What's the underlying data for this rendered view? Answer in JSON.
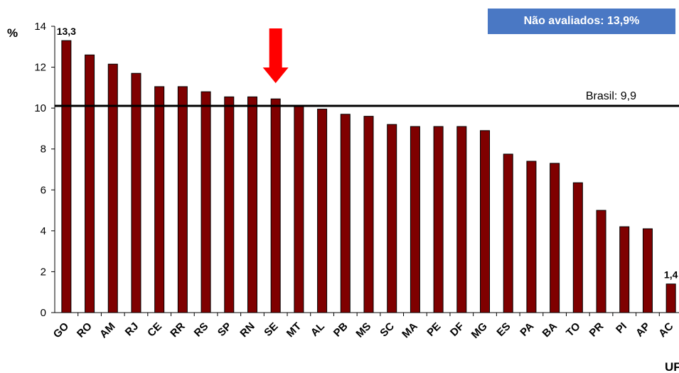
{
  "chart_data": {
    "type": "bar",
    "ylabel": "%",
    "xlabel": "UF",
    "ylim": [
      0,
      14
    ],
    "yticks": [
      0,
      2,
      4,
      6,
      8,
      10,
      12,
      14
    ],
    "grid": false,
    "bar_color": "#7f0000",
    "categories": [
      "GO",
      "RO",
      "AM",
      "RJ",
      "CE",
      "RR",
      "RS",
      "SP",
      "RN",
      "SE",
      "MT",
      "AL",
      "PB",
      "MS",
      "SC",
      "MA",
      "PE",
      "DF",
      "MG",
      "ES",
      "PA",
      "BA",
      "TO",
      "PR",
      "PI",
      "AP",
      "AC"
    ],
    "values": [
      13.3,
      12.6,
      12.15,
      11.7,
      11.05,
      11.05,
      10.8,
      10.55,
      10.55,
      10.45,
      10.1,
      9.95,
      9.7,
      9.6,
      9.2,
      9.1,
      9.1,
      9.1,
      8.9,
      7.75,
      7.4,
      7.3,
      6.35,
      5.0,
      4.2,
      4.1,
      1.4
    ],
    "data_labels": [
      {
        "category": "GO",
        "text": "13,3"
      },
      {
        "category": "AC",
        "text": "1,4"
      }
    ],
    "reference_line": {
      "value": 9.9,
      "label": "Brasil: 9,9",
      "color": "#000000"
    },
    "highlight": {
      "category": "SE",
      "marker": "red-down-arrow",
      "color": "#ff0000"
    },
    "annotation_box": {
      "text": "Não avaliados: 13,9%",
      "color": "#4a78c4"
    }
  }
}
